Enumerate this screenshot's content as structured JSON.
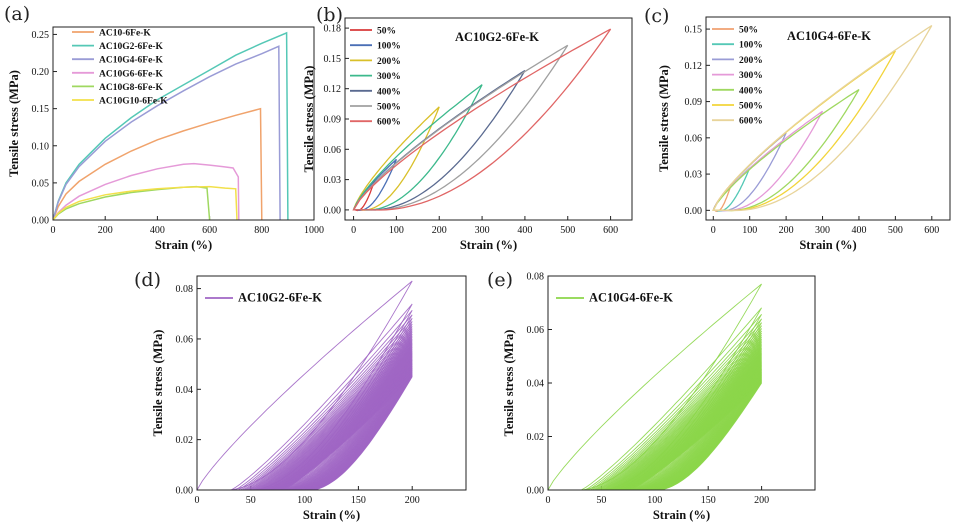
{
  "chart_data": [
    {
      "letter": "(a)",
      "type": "line",
      "title": "",
      "xlabel": "Strain (%)",
      "ylabel": "Tensile stress (MPa)",
      "xlim": [
        0,
        1000
      ],
      "ylim": [
        0,
        0.26
      ],
      "xticks": [
        0,
        200,
        400,
        600,
        800,
        1000
      ],
      "xtick_labels": [
        "0",
        "200",
        "400",
        "600",
        "800",
        "1000"
      ],
      "yticks": [
        0,
        0.05,
        0.1,
        0.15,
        0.2,
        0.25
      ],
      "ytick_labels": [
        "0.00",
        "0.05",
        "0.10",
        "0.15",
        "0.20",
        "0.25"
      ],
      "legend_position": "top-left",
      "series": [
        {
          "name": "AC10-6Fe-K",
          "color": "#f0a36c",
          "points": [
            [
              0,
              0
            ],
            [
              20,
              0.018
            ],
            [
              50,
              0.035
            ],
            [
              100,
              0.052
            ],
            [
              200,
              0.075
            ],
            [
              300,
              0.093
            ],
            [
              400,
              0.108
            ],
            [
              500,
              0.12
            ],
            [
              600,
              0.131
            ],
            [
              700,
              0.141
            ],
            [
              795,
              0.15
            ],
            [
              800,
              0.0
            ]
          ]
        },
        {
          "name": "AC10G2-6Fe-K",
          "color": "#55c8b6",
          "points": [
            [
              0,
              0
            ],
            [
              20,
              0.025
            ],
            [
              50,
              0.05
            ],
            [
              100,
              0.075
            ],
            [
              200,
              0.11
            ],
            [
              300,
              0.138
            ],
            [
              400,
              0.162
            ],
            [
              500,
              0.182
            ],
            [
              600,
              0.202
            ],
            [
              700,
              0.222
            ],
            [
              800,
              0.238
            ],
            [
              895,
              0.252
            ],
            [
              900,
              0.0
            ]
          ]
        },
        {
          "name": "AC10G4-6Fe-K",
          "color": "#9a9cd6",
          "points": [
            [
              0,
              0
            ],
            [
              20,
              0.024
            ],
            [
              50,
              0.048
            ],
            [
              100,
              0.072
            ],
            [
              200,
              0.106
            ],
            [
              300,
              0.132
            ],
            [
              400,
              0.154
            ],
            [
              500,
              0.174
            ],
            [
              600,
              0.193
            ],
            [
              700,
              0.21
            ],
            [
              800,
              0.224
            ],
            [
              865,
              0.234
            ],
            [
              870,
              0.0
            ]
          ]
        },
        {
          "name": "AC10G6-6Fe-K",
          "color": "#e59ad8",
          "points": [
            [
              0,
              0
            ],
            [
              20,
              0.01
            ],
            [
              50,
              0.02
            ],
            [
              100,
              0.032
            ],
            [
              200,
              0.048
            ],
            [
              300,
              0.06
            ],
            [
              400,
              0.069
            ],
            [
              500,
              0.075
            ],
            [
              540,
              0.076
            ],
            [
              600,
              0.074
            ],
            [
              650,
              0.072
            ],
            [
              690,
              0.07
            ],
            [
              710,
              0.058
            ],
            [
              712,
              0.0
            ]
          ]
        },
        {
          "name": "AC10G8-6Fe-K",
          "color": "#9fd860",
          "points": [
            [
              0,
              0
            ],
            [
              20,
              0.008
            ],
            [
              50,
              0.015
            ],
            [
              100,
              0.022
            ],
            [
              200,
              0.031
            ],
            [
              300,
              0.037
            ],
            [
              400,
              0.041
            ],
            [
              500,
              0.044
            ],
            [
              550,
              0.045
            ],
            [
              590,
              0.043
            ],
            [
              600,
              0.0
            ]
          ]
        },
        {
          "name": "AC10G10-6Fe-K",
          "color": "#f2e04a",
          "points": [
            [
              0,
              0
            ],
            [
              20,
              0.009
            ],
            [
              50,
              0.017
            ],
            [
              100,
              0.025
            ],
            [
              200,
              0.034
            ],
            [
              300,
              0.039
            ],
            [
              400,
              0.042
            ],
            [
              500,
              0.044
            ],
            [
              600,
              0.045
            ],
            [
              660,
              0.043
            ],
            [
              700,
              0.042
            ],
            [
              705,
              0.0
            ]
          ]
        }
      ]
    },
    {
      "letter": "(b)",
      "type": "line",
      "title": "AC10G2-6Fe-K",
      "xlabel": "Strain (%)",
      "ylabel": "Tensile stress (MPa)",
      "xlim": [
        -20,
        650
      ],
      "ylim": [
        -0.01,
        0.19
      ],
      "xticks": [
        0,
        100,
        200,
        300,
        400,
        500,
        600
      ],
      "xtick_labels": [
        "0",
        "100",
        "200",
        "300",
        "400",
        "500",
        "600"
      ],
      "yticks": [
        0,
        0.03,
        0.06,
        0.09,
        0.12,
        0.15,
        0.18
      ],
      "ytick_labels": [
        "0.00",
        "0.03",
        "0.06",
        "0.09",
        "0.12",
        "0.15",
        "0.18"
      ],
      "legend_position": "top-left",
      "series": [
        {
          "name": "50%",
          "color": "#d83a3a",
          "max_strain": 50,
          "max_stress": 0.03
        },
        {
          "name": "100%",
          "color": "#4a6fb5",
          "max_strain": 100,
          "max_stress": 0.05
        },
        {
          "name": "200%",
          "color": "#d9c02a",
          "max_strain": 200,
          "max_stress": 0.102
        },
        {
          "name": "300%",
          "color": "#3cb98c",
          "max_strain": 300,
          "max_stress": 0.124
        },
        {
          "name": "400%",
          "color": "#5a6a90",
          "max_strain": 400,
          "max_stress": 0.138
        },
        {
          "name": "500%",
          "color": "#a0a0a0",
          "max_strain": 500,
          "max_stress": 0.163
        },
        {
          "name": "600%",
          "color": "#e06666",
          "max_strain": 600,
          "max_stress": 0.179
        }
      ]
    },
    {
      "letter": "(c)",
      "type": "line",
      "title": "AC10G4-6Fe-K",
      "xlabel": "Strain (%)",
      "ylabel": "Tensile stress (MPa)",
      "xlim": [
        -20,
        650
      ],
      "ylim": [
        -0.008,
        0.16
      ],
      "xticks": [
        0,
        100,
        200,
        300,
        400,
        500,
        600
      ],
      "xtick_labels": [
        "0",
        "100",
        "200",
        "300",
        "400",
        "500",
        "600"
      ],
      "yticks": [
        0,
        0.03,
        0.06,
        0.09,
        0.12,
        0.15
      ],
      "ytick_labels": [
        "0.00",
        "0.03",
        "0.06",
        "0.09",
        "0.12",
        "0.15"
      ],
      "legend_position": "top-left",
      "series": [
        {
          "name": "50%",
          "color": "#f0a070",
          "max_strain": 50,
          "max_stress": 0.022
        },
        {
          "name": "100%",
          "color": "#55c8b6",
          "max_strain": 100,
          "max_stress": 0.035
        },
        {
          "name": "200%",
          "color": "#9a9cd6",
          "max_strain": 200,
          "max_stress": 0.064
        },
        {
          "name": "300%",
          "color": "#e59ad8",
          "max_strain": 300,
          "max_stress": 0.082
        },
        {
          "name": "400%",
          "color": "#9fd860",
          "max_strain": 400,
          "max_stress": 0.1
        },
        {
          "name": "500%",
          "color": "#f2d43a",
          "max_strain": 500,
          "max_stress": 0.132
        },
        {
          "name": "600%",
          "color": "#e8d49a",
          "max_strain": 600,
          "max_stress": 0.153
        }
      ]
    },
    {
      "letter": "(d)",
      "type": "line",
      "title": "",
      "xlabel": "Strain (%)",
      "ylabel": "Tensile stress (MPa)",
      "xlim": [
        0,
        250
      ],
      "ylim": [
        0,
        0.085
      ],
      "xticks": [
        0,
        50,
        100,
        150,
        200
      ],
      "xtick_labels": [
        "0",
        "50",
        "100",
        "150",
        "200"
      ],
      "yticks": [
        0,
        0.02,
        0.04,
        0.06,
        0.08
      ],
      "ytick_labels": [
        "0.00",
        "0.02",
        "0.04",
        "0.06",
        "0.08"
      ],
      "legend_position": "top-left",
      "series": [
        {
          "name": "AC10G2-6Fe-K",
          "color": "#a066c4",
          "cycles": 60,
          "max_strain": 200,
          "first_peak": 0.083,
          "last_peak": 0.045,
          "first_residual": 0,
          "last_residual": 100
        }
      ]
    },
    {
      "letter": "(e)",
      "type": "line",
      "title": "",
      "xlabel": "Strain (%)",
      "ylabel": "Tensile stress (MPa)",
      "xlim": [
        0,
        250
      ],
      "ylim": [
        0,
        0.08
      ],
      "xticks": [
        0,
        50,
        100,
        150,
        200
      ],
      "xtick_labels": [
        "0",
        "50",
        "100",
        "150",
        "200"
      ],
      "yticks": [
        0,
        0.02,
        0.04,
        0.06,
        0.08
      ],
      "ytick_labels": [
        "0.00",
        "0.02",
        "0.04",
        "0.06",
        "0.08"
      ],
      "legend_position": "top-left",
      "series": [
        {
          "name": "AC10G4-6Fe-K",
          "color": "#8cd64a",
          "cycles": 60,
          "max_strain": 200,
          "first_peak": 0.077,
          "last_peak": 0.04,
          "first_residual": 0,
          "last_residual": 95
        }
      ]
    }
  ]
}
